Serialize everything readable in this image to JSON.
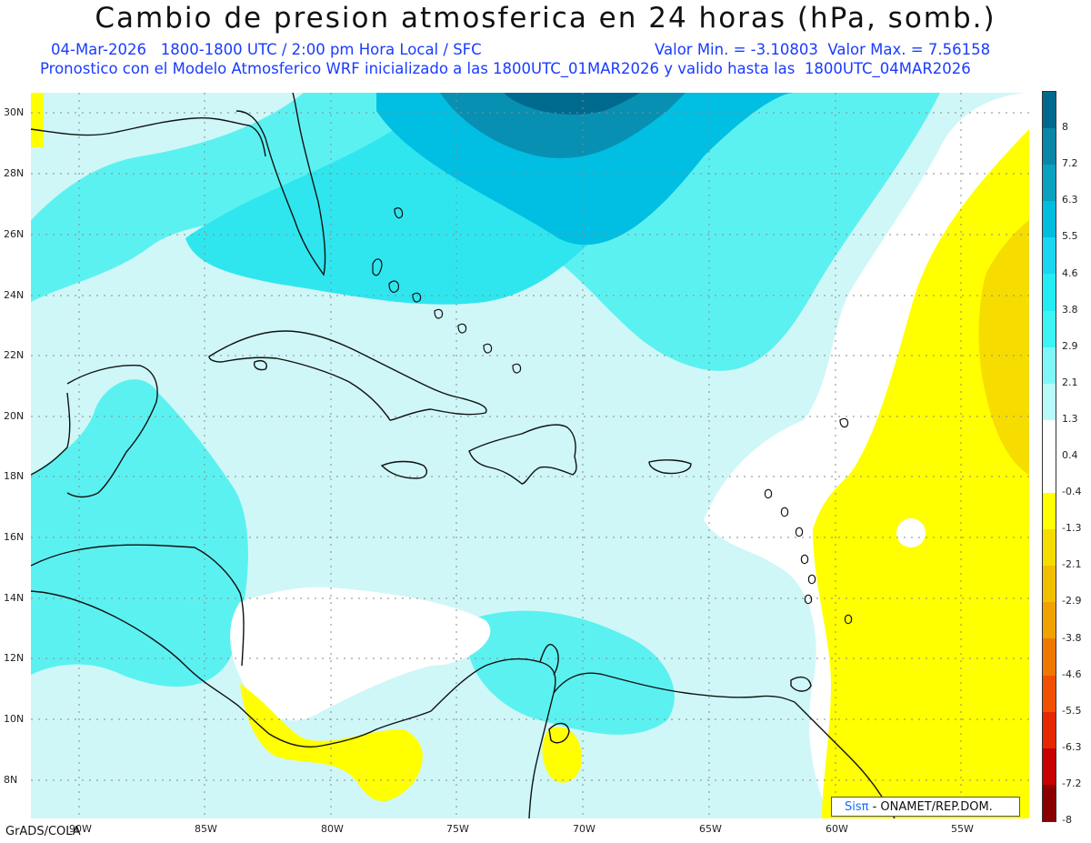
{
  "header": {
    "title": "Cambio de presion atmosferica en 24 horas (hPa, somb.)",
    "line1_left": "04-Mar-2026   1800-1800 UTC / 2:00 pm Hora Local / SFC",
    "line1_right": "Valor Min. = -3.10803  Valor Max. = 7.56158",
    "line2": "Pronostico con el Modelo Atmosferico WRF inicializado a las 1800UTC_01MAR2026 y valido hasta las  1800UTC_04MAR2026"
  },
  "axes": {
    "lat_labels": [
      "30N",
      "28N",
      "26N",
      "24N",
      "22N",
      "20N",
      "18N",
      "16N",
      "14N",
      "12N",
      "10N",
      "8N"
    ],
    "lon_labels": [
      "90W",
      "85W",
      "80W",
      "75W",
      "70W",
      "65W",
      "60W",
      "55W"
    ]
  },
  "colorbar": {
    "labels": [
      "8",
      "7.2",
      "6.3",
      "5.5",
      "4.6",
      "3.8",
      "2.9",
      "2.1",
      "1.3",
      "0.4",
      "-0.4",
      "-1.3",
      "-2.1",
      "-2.9",
      "-3.8",
      "-4.6",
      "-5.5",
      "-6.3",
      "-7.2",
      "-8"
    ],
    "colors": [
      "#006a8e",
      "#0a86a8",
      "#0aa0c0",
      "#00bde0",
      "#1ad6f0",
      "#23ecf5",
      "#3cf4f4",
      "#7ff7f7",
      "#b8f9f9",
      "#ffffff",
      "#ffffff",
      "#ffff00",
      "#f5dc00",
      "#f0c000",
      "#f0a200",
      "#f07800",
      "#f05000",
      "#e62800",
      "#c80000",
      "#8a0000"
    ]
  },
  "map_colors": {
    "base": "#cff7f7",
    "medium": "#5cf1f1",
    "strong": "#2fe6ef",
    "deep": "#00bfe2",
    "deeper": "#0890b2",
    "deepest": "#006a8e",
    "white": "#ffffff",
    "yellow": "#ffff00",
    "gold": "#f7dc00",
    "land": "#111111"
  },
  "footer": {
    "credit": "GrADS/COLA",
    "logo_brand": "Sisπ",
    "logo_text": " - ONAMET/REP.DOM."
  }
}
